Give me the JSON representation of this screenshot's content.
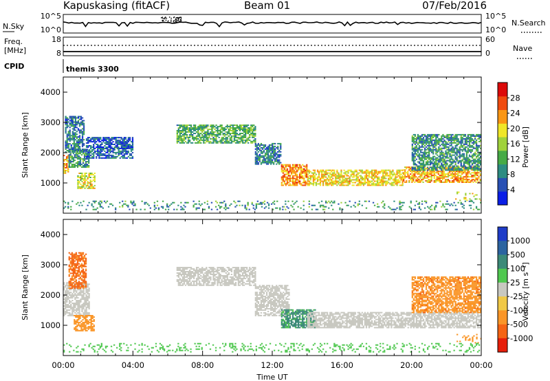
{
  "header": {
    "station": "Kapuskasing (fitACF)",
    "beam": "Beam 01",
    "date": "07/Feb/2016"
  },
  "nsky_panel": {
    "left_label": "N.Sky",
    "right_label": "N.Search",
    "left_ticks": [
      "10^5",
      "10^0"
    ],
    "right_ticks": [
      "10^5",
      "10^0"
    ]
  },
  "freq_panel": {
    "label_line1": "Freq.",
    "label_line2": "[MHz]",
    "left_ticks": [
      "18",
      "8"
    ],
    "right_ticks": [
      "60",
      "0"
    ],
    "right_label": "Nave"
  },
  "cpid": {
    "label": "CPID",
    "value": "themis 3300"
  },
  "time_axis": {
    "label": "Time UT",
    "ticks": [
      "00:00",
      "04:00",
      "08:00",
      "12:00",
      "16:00",
      "20:00",
      "00:00"
    ]
  },
  "chart_data": [
    {
      "type": "heatmap",
      "name_shown": "Power",
      "ylabel": "Slant Range [km]",
      "xlabel": "",
      "x_range_hours": [
        0,
        24
      ],
      "ylim": [
        0,
        4500
      ],
      "y_ticks": [
        1000,
        2000,
        3000,
        4000
      ],
      "colorbar": {
        "label": "Power [dB]",
        "range": [
          0,
          32
        ],
        "ticks": [
          "4",
          "8",
          "12",
          "16",
          "20",
          "24",
          "28"
        ],
        "colors": [
          "#0a1ee6",
          "#2850b4",
          "#2d8c82",
          "#46aa46",
          "#a0d23c",
          "#f0e628",
          "#fa9614",
          "#f04b0f",
          "#dc0a0a"
        ]
      },
      "regions": [
        {
          "x": [
            0.0,
            0.3
          ],
          "y": [
            1300,
            1900
          ],
          "value": 22
        },
        {
          "x": [
            0.3,
            1.5
          ],
          "y": [
            1500,
            2100
          ],
          "value": 10
        },
        {
          "x": [
            0.1,
            1.2
          ],
          "y": [
            2000,
            3200
          ],
          "value": 8
        },
        {
          "x": [
            0.8,
            1.8
          ],
          "y": [
            800,
            1300
          ],
          "value": 18
        },
        {
          "x": [
            1.3,
            4.0
          ],
          "y": [
            1800,
            2500
          ],
          "value": 6
        },
        {
          "x": [
            6.5,
            11.0
          ],
          "y": [
            2300,
            2900
          ],
          "value": 12
        },
        {
          "x": [
            11.0,
            12.5
          ],
          "y": [
            1600,
            2300
          ],
          "value": 8
        },
        {
          "x": [
            12.5,
            14.0
          ],
          "y": [
            900,
            1600
          ],
          "value": 24
        },
        {
          "x": [
            14.0,
            19.5
          ],
          "y": [
            900,
            1400
          ],
          "value": 20
        },
        {
          "x": [
            19.5,
            24.0
          ],
          "y": [
            1000,
            1500
          ],
          "value": 22
        },
        {
          "x": [
            20.0,
            24.0
          ],
          "y": [
            1400,
            2600
          ],
          "value": 10
        },
        {
          "x": [
            22.5,
            24.0
          ],
          "y": [
            400,
            700
          ],
          "value": 18
        },
        {
          "x": [
            0.0,
            24.0
          ],
          "y": [
            100,
            400
          ],
          "value": 10
        }
      ]
    },
    {
      "type": "heatmap",
      "name_shown": "Velocity",
      "ylabel": "Slant Range [km]",
      "xlabel": "Time UT",
      "x_range_hours": [
        0,
        24
      ],
      "ylim": [
        0,
        4500
      ],
      "y_ticks": [
        1000,
        2000,
        3000,
        4000
      ],
      "colorbar": {
        "label": "Velocity [m s⁻¹]",
        "ticks": [
          "1000",
          "500",
          "100",
          "25",
          "-25",
          "-100",
          "-500",
          "-1000"
        ],
        "colors": [
          "#1e3cc8",
          "#2c64a0",
          "#3c8a78",
          "#50c850",
          "#c8c8c0",
          "#f0c846",
          "#fa9628",
          "#f56414",
          "#e61e0a"
        ]
      },
      "regions": [
        {
          "x": [
            0.0,
            1.5
          ],
          "y": [
            1300,
            2400
          ],
          "value": 0
        },
        {
          "x": [
            0.3,
            1.3
          ],
          "y": [
            2200,
            3400
          ],
          "value": -600
        },
        {
          "x": [
            0.6,
            1.8
          ],
          "y": [
            800,
            1300
          ],
          "value": -250
        },
        {
          "x": [
            6.5,
            11.0
          ],
          "y": [
            2300,
            2900
          ],
          "value": 0
        },
        {
          "x": [
            11.0,
            13.0
          ],
          "y": [
            1300,
            2300
          ],
          "value": 0
        },
        {
          "x": [
            12.5,
            14.5
          ],
          "y": [
            900,
            1500
          ],
          "value": 120
        },
        {
          "x": [
            14.0,
            24.0
          ],
          "y": [
            900,
            1400
          ],
          "value": 0
        },
        {
          "x": [
            20.0,
            24.0
          ],
          "y": [
            1400,
            2600
          ],
          "value": -400
        },
        {
          "x": [
            22.5,
            24.0
          ],
          "y": [
            400,
            700
          ],
          "value": -300
        },
        {
          "x": [
            0.0,
            24.0
          ],
          "y": [
            100,
            400
          ],
          "value": 50
        }
      ]
    }
  ]
}
